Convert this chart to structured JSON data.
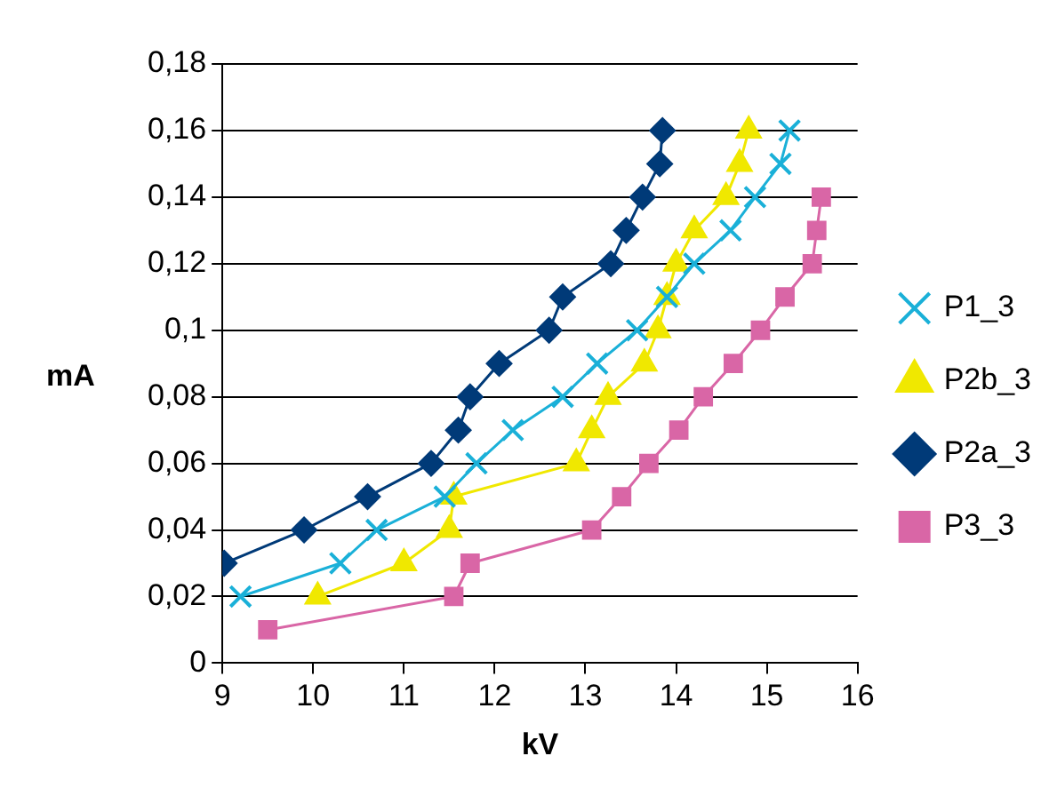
{
  "chart_data": {
    "type": "line",
    "xlabel": "kV",
    "ylabel": "mA",
    "xlim": [
      9,
      16
    ],
    "xticks": [
      9,
      10,
      11,
      12,
      13,
      14,
      15,
      16
    ],
    "ylim": [
      0,
      0.18
    ],
    "yticks": [
      0,
      {
        "value": 0.02,
        "label": "0,02"
      },
      {
        "value": 0.04,
        "label": "0,04"
      },
      {
        "value": 0.06,
        "label": "0,06"
      },
      {
        "value": 0.08,
        "label": "0,08"
      },
      {
        "value": 0.1,
        "label": "0,1"
      },
      {
        "value": 0.12,
        "label": "0,12"
      },
      {
        "value": 0.14,
        "label": "0,14"
      },
      {
        "value": 0.16,
        "label": "0,16"
      },
      {
        "value": 0.18,
        "label": "0,18"
      }
    ],
    "grid": "y",
    "legend": "right",
    "series": [
      {
        "name": "P3_3",
        "color": "#d966a6",
        "marker": "square",
        "x": [
          9.5,
          11.55,
          11.73,
          13.07,
          13.4,
          13.7,
          14.03,
          14.3,
          14.63,
          14.93,
          15.2,
          15.5,
          15.55,
          15.6
        ],
        "values": [
          0.01,
          0.02,
          0.03,
          0.04,
          0.05,
          0.06,
          0.07,
          0.08,
          0.09,
          0.1,
          0.11,
          0.12,
          0.13,
          0.14
        ]
      },
      {
        "name": "P2a_3",
        "color": "#003a78",
        "marker": "diamond",
        "x": [
          9.02,
          9.9,
          10.6,
          11.3,
          11.6,
          11.73,
          12.05,
          12.6,
          12.75,
          13.28,
          13.45,
          13.63,
          13.82,
          13.85
        ],
        "values": [
          0.03,
          0.04,
          0.05,
          0.06,
          0.07,
          0.08,
          0.09,
          0.1,
          0.11,
          0.12,
          0.13,
          0.14,
          0.15,
          0.16
        ]
      },
      {
        "name": "P2b_3",
        "color": "#f0e800",
        "marker": "triangle",
        "x": [
          10.05,
          11.0,
          11.5,
          11.55,
          12.9,
          13.07,
          13.25,
          13.65,
          13.8,
          13.9,
          14.0,
          14.2,
          14.55,
          14.7,
          14.8
        ],
        "values": [
          0.02,
          0.03,
          0.04,
          0.05,
          0.06,
          0.07,
          0.08,
          0.09,
          0.1,
          0.11,
          0.12,
          0.13,
          0.14,
          0.15,
          0.16
        ]
      },
      {
        "name": "P1_3",
        "color": "#1ab0d8",
        "marker": "cross",
        "x": [
          9.2,
          10.3,
          10.7,
          11.45,
          11.8,
          12.2,
          12.75,
          13.13,
          13.57,
          13.9,
          14.2,
          14.6,
          14.87,
          15.15,
          15.25
        ],
        "values": [
          0.02,
          0.03,
          0.04,
          0.05,
          0.06,
          0.07,
          0.08,
          0.09,
          0.1,
          0.11,
          0.12,
          0.13,
          0.14,
          0.15,
          0.16
        ]
      }
    ]
  }
}
